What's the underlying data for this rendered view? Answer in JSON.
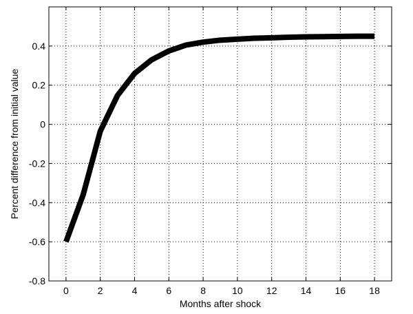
{
  "chart_data": {
    "type": "line",
    "xlabel": "Months after shock",
    "ylabel": "Percent difference from initial value",
    "x": [
      0,
      1,
      2,
      3,
      4,
      5,
      6,
      7,
      8,
      9,
      10,
      11,
      12,
      13,
      14,
      15,
      16,
      17,
      18
    ],
    "series": [
      {
        "color": "#000000",
        "values": [
          -0.6,
          -0.36,
          -0.035,
          0.147,
          0.26,
          0.33,
          0.375,
          0.405,
          0.42,
          0.43,
          0.435,
          0.44,
          0.442,
          0.445,
          0.447,
          0.448,
          0.449,
          0.45,
          0.45
        ]
      }
    ],
    "xlim": [
      -1,
      19
    ],
    "xticks": [
      0,
      2,
      4,
      6,
      8,
      10,
      12,
      14,
      16,
      18
    ],
    "ylim": [
      -0.8,
      0.6
    ],
    "yticks": [
      -0.8,
      -0.6,
      -0.4,
      -0.2,
      0,
      0.2,
      0.4
    ],
    "grid": true
  }
}
